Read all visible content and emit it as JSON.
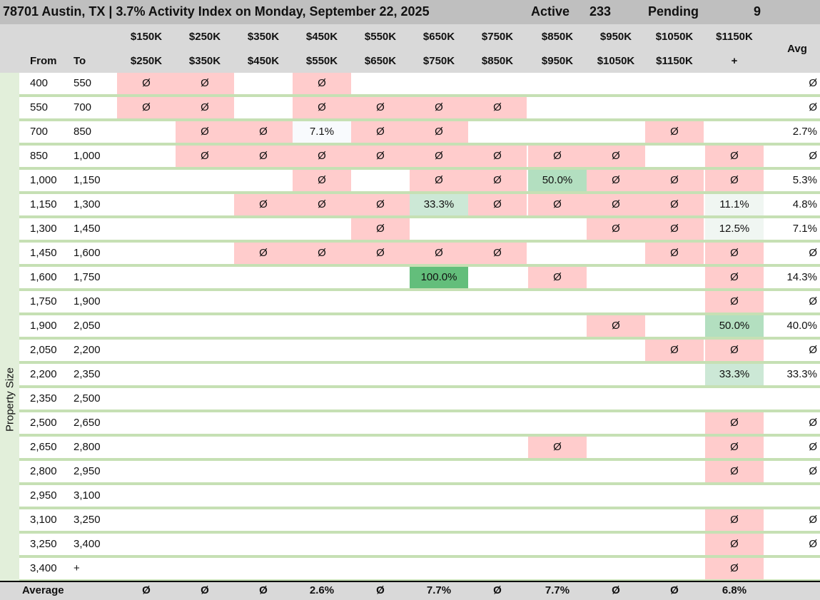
{
  "title": {
    "heading": "78701 Austin, TX | 3.7% Activity Index on Monday, September 22, 2025",
    "active_label": "Active",
    "active_value": "233",
    "pending_label": "Pending",
    "pending_value": "9"
  },
  "header": {
    "from_label": "From",
    "to_label": "To",
    "avg_label": "Avg",
    "price_top": [
      "$150K",
      "$250K",
      "$350K",
      "$450K",
      "$550K",
      "$650K",
      "$750K",
      "$850K",
      "$950K",
      "$1050K",
      "$1150K"
    ],
    "price_bottom": [
      "$250K",
      "$350K",
      "$450K",
      "$550K",
      "$650K",
      "$750K",
      "$850K",
      "$950K",
      "$1050K",
      "$1150K",
      "+"
    ]
  },
  "axis_label": "Property Size",
  "colors": {
    "empty": "#ffcccc",
    "low": "#f8fafd",
    "light": "#f0f6f2",
    "mid": "#cce8d6",
    "strong": "#b3dfc0",
    "full": "#63be7b",
    "title_bg": "#bfbfbf",
    "header_bg": "#d9d9d9",
    "row_rule": "#c6e0b4"
  },
  "chart_data": {
    "type": "heatmap",
    "title": "78701 Austin, TX | 3.7% Activity Index on Monday, September 22, 2025",
    "columns": [
      "$150K-$250K",
      "$250K-$350K",
      "$350K-$450K",
      "$450K-$550K",
      "$550K-$650K",
      "$650K-$750K",
      "$750K-$850K",
      "$850K-$950K",
      "$950K-$1050K",
      "$1050K-$1150K",
      "$1150K+"
    ],
    "rows": [
      {
        "from": "400",
        "to": "550",
        "cells": [
          "Ø",
          "Ø",
          "",
          "Ø",
          "",
          "",
          "",
          "",
          "",
          "",
          ""
        ],
        "avg": "Ø"
      },
      {
        "from": "550",
        "to": "700",
        "cells": [
          "Ø",
          "Ø",
          "",
          "Ø",
          "Ø",
          "Ø",
          "Ø",
          "",
          "",
          "",
          ""
        ],
        "avg": "Ø"
      },
      {
        "from": "700",
        "to": "850",
        "cells": [
          "",
          "Ø",
          "Ø",
          "7.1%",
          "Ø",
          "Ø",
          "",
          "",
          "",
          "Ø",
          ""
        ],
        "avg": "2.7%"
      },
      {
        "from": "850",
        "to": "1,000",
        "cells": [
          "",
          "Ø",
          "Ø",
          "Ø",
          "Ø",
          "Ø",
          "Ø",
          "Ø",
          "Ø",
          "",
          "Ø"
        ],
        "avg": "Ø"
      },
      {
        "from": "1,000",
        "to": "1,150",
        "cells": [
          "",
          "",
          "",
          "Ø",
          "",
          "Ø",
          "Ø",
          "50.0%",
          "Ø",
          "Ø",
          "Ø"
        ],
        "avg": "5.3%"
      },
      {
        "from": "1,150",
        "to": "1,300",
        "cells": [
          "",
          "",
          "Ø",
          "Ø",
          "Ø",
          "33.3%",
          "Ø",
          "Ø",
          "Ø",
          "Ø",
          "11.1%"
        ],
        "avg": "4.8%"
      },
      {
        "from": "1,300",
        "to": "1,450",
        "cells": [
          "",
          "",
          "",
          "",
          "Ø",
          "",
          "",
          "",
          "Ø",
          "Ø",
          "12.5%"
        ],
        "avg": "7.1%"
      },
      {
        "from": "1,450",
        "to": "1,600",
        "cells": [
          "",
          "",
          "Ø",
          "Ø",
          "Ø",
          "Ø",
          "Ø",
          "",
          "",
          "Ø",
          "Ø"
        ],
        "avg": "Ø"
      },
      {
        "from": "1,600",
        "to": "1,750",
        "cells": [
          "",
          "",
          "",
          "",
          "",
          "100.0%",
          "",
          "Ø",
          "",
          "",
          "Ø"
        ],
        "avg": "14.3%"
      },
      {
        "from": "1,750",
        "to": "1,900",
        "cells": [
          "",
          "",
          "",
          "",
          "",
          "",
          "",
          "",
          "",
          "",
          "Ø"
        ],
        "avg": "Ø"
      },
      {
        "from": "1,900",
        "to": "2,050",
        "cells": [
          "",
          "",
          "",
          "",
          "",
          "",
          "",
          "",
          "Ø",
          "",
          "50.0%"
        ],
        "avg": "40.0%"
      },
      {
        "from": "2,050",
        "to": "2,200",
        "cells": [
          "",
          "",
          "",
          "",
          "",
          "",
          "",
          "",
          "",
          "Ø",
          "Ø"
        ],
        "avg": "Ø"
      },
      {
        "from": "2,200",
        "to": "2,350",
        "cells": [
          "",
          "",
          "",
          "",
          "",
          "",
          "",
          "",
          "",
          "",
          "33.3%"
        ],
        "avg": "33.3%"
      },
      {
        "from": "2,350",
        "to": "2,500",
        "cells": [
          "",
          "",
          "",
          "",
          "",
          "",
          "",
          "",
          "",
          "",
          ""
        ],
        "avg": ""
      },
      {
        "from": "2,500",
        "to": "2,650",
        "cells": [
          "",
          "",
          "",
          "",
          "",
          "",
          "",
          "",
          "",
          "",
          "Ø"
        ],
        "avg": "Ø"
      },
      {
        "from": "2,650",
        "to": "2,800",
        "cells": [
          "",
          "",
          "",
          "",
          "",
          "",
          "",
          "Ø",
          "",
          "",
          "Ø"
        ],
        "avg": "Ø"
      },
      {
        "from": "2,800",
        "to": "2,950",
        "cells": [
          "",
          "",
          "",
          "",
          "",
          "",
          "",
          "",
          "",
          "",
          "Ø"
        ],
        "avg": "Ø"
      },
      {
        "from": "2,950",
        "to": "3,100",
        "cells": [
          "",
          "",
          "",
          "",
          "",
          "",
          "",
          "",
          "",
          "",
          ""
        ],
        "avg": ""
      },
      {
        "from": "3,100",
        "to": "3,250",
        "cells": [
          "",
          "",
          "",
          "",
          "",
          "",
          "",
          "",
          "",
          "",
          "Ø"
        ],
        "avg": "Ø"
      },
      {
        "from": "3,250",
        "to": "3,400",
        "cells": [
          "",
          "",
          "",
          "",
          "",
          "",
          "",
          "",
          "",
          "",
          "Ø"
        ],
        "avg": "Ø"
      },
      {
        "from": "3,400",
        "to": "+",
        "cells": [
          "",
          "",
          "",
          "",
          "",
          "",
          "",
          "",
          "",
          "",
          "Ø"
        ],
        "avg": ""
      }
    ],
    "footer": {
      "label": "Average",
      "values": [
        "Ø",
        "Ø",
        "Ø",
        "2.6%",
        "Ø",
        "7.7%",
        "Ø",
        "7.7%",
        "Ø",
        "Ø",
        "6.8%"
      ]
    }
  }
}
